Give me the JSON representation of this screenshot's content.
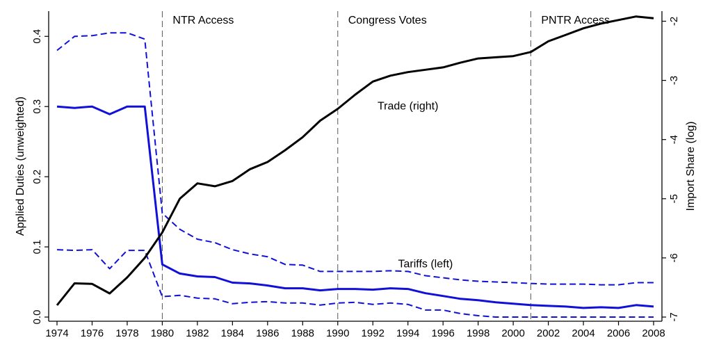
{
  "chart_data": {
    "type": "line",
    "x": [
      1974,
      1975,
      1976,
      1977,
      1978,
      1979,
      1980,
      1981,
      1982,
      1983,
      1984,
      1985,
      1986,
      1987,
      1988,
      1989,
      1990,
      1991,
      1992,
      1993,
      1994,
      1995,
      1996,
      1997,
      1998,
      1999,
      2000,
      2001,
      2002,
      2003,
      2004,
      2005,
      2006,
      2007,
      2008
    ],
    "x_ticks": [
      "1974",
      "1976",
      "1978",
      "1980",
      "1982",
      "1984",
      "1986",
      "1988",
      "1990",
      "1992",
      "1994",
      "1996",
      "1998",
      "2000",
      "2002",
      "2004",
      "2006",
      "2008"
    ],
    "y_left_label": "Applied Duties (unweighted)",
    "y_left_range": [
      0,
      0.43
    ],
    "y_left_ticks": [
      "0.0",
      "0.1",
      "0.2",
      "0.3",
      "0.4"
    ],
    "y_right_label": "Import Share (log)",
    "y_right_range": [
      -7,
      -1.9
    ],
    "y_right_ticks": [
      "-7",
      "-6",
      "-5",
      "-4",
      "-3",
      "-2"
    ],
    "series": [
      {
        "axis": "left",
        "color": "#1010d8",
        "style": "solid",
        "values": [
          0.3,
          0.298,
          0.3,
          0.289,
          0.3,
          0.3,
          0.075,
          0.062,
          0.058,
          0.057,
          0.049,
          0.048,
          0.045,
          0.041,
          0.041,
          0.038,
          0.04,
          0.04,
          0.039,
          0.041,
          0.04,
          0.034,
          0.03,
          0.026,
          0.024,
          0.021,
          0.019,
          0.017,
          0.016,
          0.015,
          0.013,
          0.014,
          0.013,
          0.017,
          0.015
        ]
      },
      {
        "axis": "left",
        "color": "#1010d8",
        "style": "dashed",
        "values": [
          0.38,
          0.4,
          0.401,
          0.405,
          0.405,
          0.396,
          0.148,
          0.125,
          0.111,
          0.106,
          0.096,
          0.09,
          0.086,
          0.075,
          0.074,
          0.065,
          0.065,
          0.065,
          0.065,
          0.066,
          0.065,
          0.059,
          0.056,
          0.053,
          0.051,
          0.05,
          0.049,
          0.048,
          0.047,
          0.047,
          0.047,
          0.046,
          0.046,
          0.049,
          0.049
        ]
      },
      {
        "axis": "left",
        "color": "#1010d8",
        "style": "dashed",
        "values": [
          0.096,
          0.095,
          0.096,
          0.069,
          0.095,
          0.095,
          0.029,
          0.031,
          0.027,
          0.026,
          0.019,
          0.021,
          0.022,
          0.02,
          0.02,
          0.017,
          0.02,
          0.021,
          0.018,
          0.02,
          0.018,
          0.01,
          0.01,
          0.005,
          0.002,
          0.0,
          0.0,
          0.0,
          0.0,
          0.0,
          0.0,
          0.0,
          0.0,
          0.0,
          0.0
        ]
      },
      {
        "axis": "right",
        "color": "#000000",
        "style": "solid",
        "values": [
          -6.8,
          -6.43,
          -6.44,
          -6.6,
          -6.33,
          -6.0,
          -5.57,
          -5.0,
          -4.74,
          -4.79,
          -4.7,
          -4.5,
          -4.38,
          -4.18,
          -3.96,
          -3.68,
          -3.48,
          -3.24,
          -3.02,
          -2.92,
          -2.86,
          -2.82,
          -2.78,
          -2.7,
          -2.63,
          -2.61,
          -2.59,
          -2.52,
          -2.34,
          -2.23,
          -2.12,
          -2.04,
          -1.98,
          -1.92,
          -1.95
        ]
      }
    ],
    "vlines": [
      {
        "x": 1980,
        "label": "NTR Access"
      },
      {
        "x": 1990,
        "label": "Congress Votes"
      },
      {
        "x": 2001,
        "label": "PNTR Access"
      }
    ],
    "annotations": [
      {
        "text": "Trade (right)",
        "x": 1994,
        "y_left": 0.3
      },
      {
        "text": "Tariffs (left)",
        "x": 1995,
        "y_left": 0.075
      }
    ],
    "grid": false,
    "legend": "none"
  }
}
